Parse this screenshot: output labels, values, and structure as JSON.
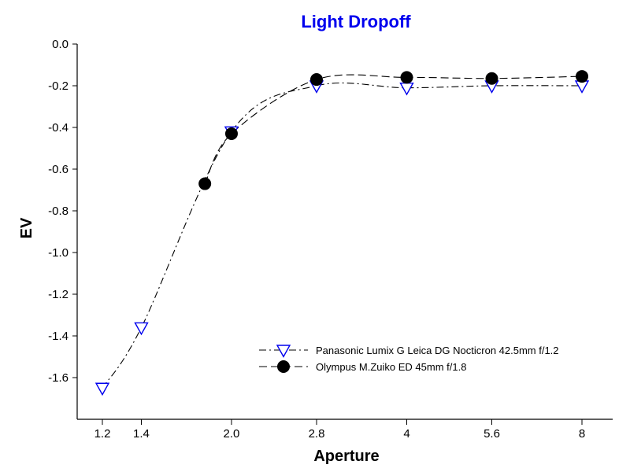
{
  "chart_data": {
    "type": "line",
    "title": "Light Dropoff",
    "title_color": "#0000ee",
    "xlabel": "Aperture",
    "ylabel": "EV",
    "x_scale": "log2 (f-number)",
    "x_ticks": [
      "1.2",
      "1.4",
      "2.0",
      "2.8",
      "4",
      "5.6",
      "8"
    ],
    "y_ticks": [
      "0.0",
      "-0.2",
      "-0.4",
      "-0.6",
      "-0.8",
      "-1.0",
      "-1.2",
      "-1.4",
      "-1.6"
    ],
    "ylim": [
      -1.8,
      0.0
    ],
    "grid": false,
    "legend_position": "lower-right",
    "series": [
      {
        "name": "Panasonic Lumix G Leica DG Nocticron 42.5mm f/1.2",
        "marker": "open-down-triangle",
        "marker_color": "#0000ee",
        "line_style": "dash-dot",
        "x": [
          1.2,
          1.4,
          2.0,
          2.8,
          4,
          5.6,
          8
        ],
        "y": [
          -1.65,
          -1.36,
          -0.42,
          -0.2,
          -0.21,
          -0.2,
          -0.2
        ]
      },
      {
        "name": "Olympus M.Zuiko ED 45mm f/1.8",
        "marker": "filled-circle",
        "marker_color": "#000000",
        "line_style": "dashed",
        "x": [
          1.8,
          2.0,
          2.8,
          4,
          5.6,
          8
        ],
        "y": [
          -0.67,
          -0.43,
          -0.17,
          -0.16,
          -0.165,
          -0.155
        ]
      }
    ]
  }
}
